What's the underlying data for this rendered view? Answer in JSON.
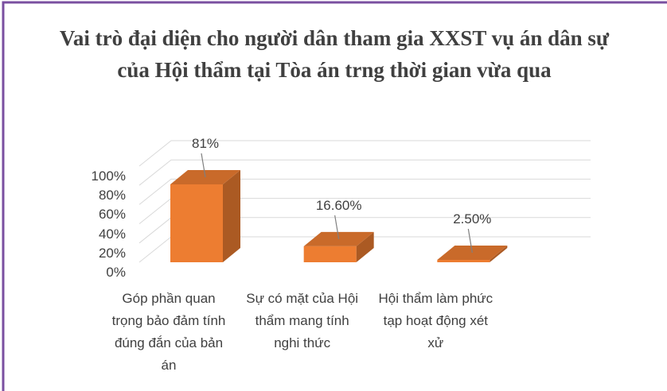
{
  "chart_data": {
    "type": "bar3d",
    "title": "Vai trò đại diện cho người dân tham gia XXST vụ án dân sự của Hội thẩm tại Tòa án trng thời gian vừa qua",
    "categories": [
      "Góp phần quan trọng bảo đảm tính đúng đắn của bản án",
      "Sự có mặt của Hội thẩm mang tính nghi thức",
      "Hội thẩm làm phức tạp hoạt động xét xử"
    ],
    "values": [
      81,
      16.6,
      2.5
    ],
    "value_labels": [
      "81%",
      "16.60%",
      "2.50%"
    ],
    "color": "#ed7d31",
    "ylim": [
      0,
      100
    ],
    "yticks": [
      {
        "value": 0,
        "label": "0%"
      },
      {
        "value": 20,
        "label": "20%"
      },
      {
        "value": 40,
        "label": "40%"
      },
      {
        "value": 60,
        "label": "60%"
      },
      {
        "value": 80,
        "label": "80%"
      },
      {
        "value": 100,
        "label": "100%"
      }
    ],
    "grid": true
  }
}
